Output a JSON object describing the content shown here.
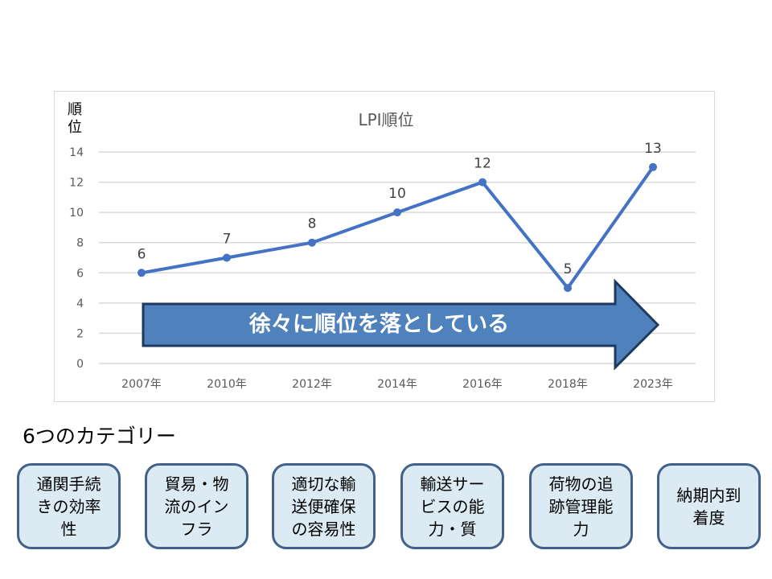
{
  "chart_data": {
    "type": "line",
    "title": "LPI順位",
    "xlabel": "",
    "ylabel": "順位",
    "categories": [
      "2007年",
      "2010年",
      "2012年",
      "2014年",
      "2016年",
      "2018年",
      "2023年"
    ],
    "series": [
      {
        "name": "LPI順位",
        "values": [
          6,
          7,
          8,
          10,
          12,
          5,
          13
        ],
        "color": "#4472c4"
      }
    ],
    "data_labels": [
      "6",
      "7",
      "8",
      "10",
      "12",
      "5",
      "13"
    ],
    "ylim": [
      0,
      14
    ],
    "yticks": [
      "0",
      "2",
      "4",
      "6",
      "8",
      "10",
      "12",
      "14"
    ],
    "grid": true,
    "legend": "none",
    "annotation": "徐々に順位を落としている"
  },
  "chart": {
    "title": "LPI順位",
    "ylabel_line1": "順",
    "ylabel_line2": "位",
    "arrow_text": "徐々に順位を落としている",
    "arrow_color": "#4f81bd",
    "line_color": "#4472c4"
  },
  "categories_section": {
    "title": "6つのカテゴリー",
    "items": [
      {
        "label": "通関手続きの効率性"
      },
      {
        "label": "貿易・物流のインフラ"
      },
      {
        "label": "適切な輸送便確保の容易性"
      },
      {
        "label": "輸送サービスの能力・質"
      },
      {
        "label": "荷物の追跡管理能力"
      },
      {
        "label": "納期内到着度"
      }
    ],
    "box_fill": "#dbeaf3",
    "box_border": "#41608a"
  }
}
